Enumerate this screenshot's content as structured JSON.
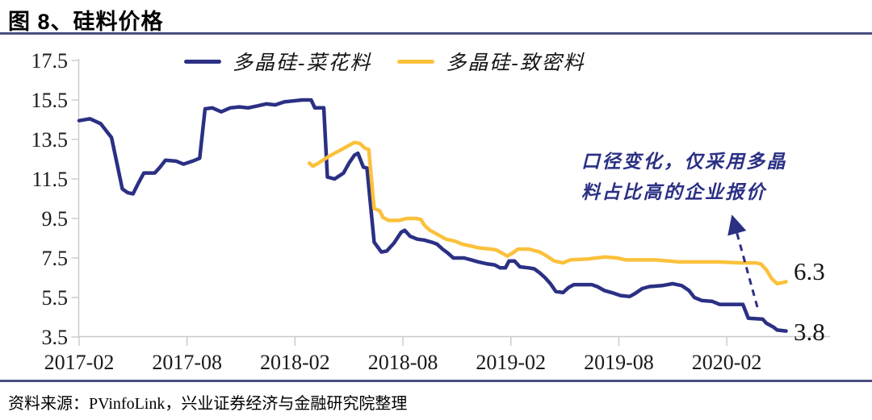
{
  "header": {
    "title": "图 8、硅料价格"
  },
  "footer": {
    "source": "资料来源：PVinfoLink，兴业证券经济与金融研究院整理"
  },
  "colors": {
    "cauliflower_line": "#2B3084",
    "dense_line": "#FBC13C",
    "rule": "#4A4F80",
    "axis": "#C9C9C9",
    "annotation_text": "#2B3084"
  },
  "chart_data": {
    "type": "line",
    "title": "硅料价格",
    "xlabel": "",
    "ylabel": "",
    "grid": false,
    "legend_position": "top",
    "y_axis": {
      "min": 3.5,
      "max": 17.5,
      "tick_step": 2,
      "tick_labels": [
        "17.5",
        "15.5",
        "13.5",
        "11.5",
        "9.5",
        "7.5",
        "5.5",
        "3.5"
      ]
    },
    "x_axis": {
      "tick_labels": [
        "2017-02",
        "2017-08",
        "2018-02",
        "2018-08",
        "2019-02",
        "2019-08",
        "2020-02"
      ],
      "months_between_ticks": 6,
      "unit_note": "x of each point = months after 2017-02"
    },
    "series": [
      {
        "name": "多晶硅-菜花料",
        "color": "#2B3084",
        "end_label": "3.8",
        "points": [
          [
            0,
            14.45
          ],
          [
            0.6,
            14.55
          ],
          [
            1.2,
            14.3
          ],
          [
            1.8,
            13.6
          ],
          [
            2.1,
            12.3
          ],
          [
            2.4,
            11.0
          ],
          [
            2.7,
            10.8
          ],
          [
            3.0,
            10.75
          ],
          [
            3.3,
            11.3
          ],
          [
            3.6,
            11.8
          ],
          [
            4.2,
            11.8
          ],
          [
            4.5,
            12.1
          ],
          [
            4.8,
            12.45
          ],
          [
            5.4,
            12.4
          ],
          [
            5.8,
            12.25
          ],
          [
            6.3,
            12.4
          ],
          [
            6.7,
            12.55
          ],
          [
            7.0,
            15.05
          ],
          [
            7.4,
            15.1
          ],
          [
            7.9,
            14.9
          ],
          [
            8.4,
            15.1
          ],
          [
            8.9,
            15.15
          ],
          [
            9.4,
            15.1
          ],
          [
            9.9,
            15.2
          ],
          [
            10.4,
            15.3
          ],
          [
            10.9,
            15.25
          ],
          [
            11.4,
            15.4
          ],
          [
            11.9,
            15.45
          ],
          [
            12.4,
            15.5
          ],
          [
            12.9,
            15.5
          ],
          [
            13.1,
            15.1
          ],
          [
            13.6,
            15.1
          ],
          [
            13.8,
            11.6
          ],
          [
            14.2,
            11.5
          ],
          [
            14.7,
            11.8
          ],
          [
            15.0,
            12.3
          ],
          [
            15.3,
            12.7
          ],
          [
            15.5,
            12.8
          ],
          [
            15.8,
            12.1
          ],
          [
            16.0,
            12.05
          ],
          [
            16.4,
            8.3
          ],
          [
            16.8,
            7.8
          ],
          [
            17.1,
            7.85
          ],
          [
            17.5,
            8.25
          ],
          [
            17.9,
            8.8
          ],
          [
            18.1,
            8.9
          ],
          [
            18.4,
            8.6
          ],
          [
            18.8,
            8.45
          ],
          [
            19.2,
            8.4
          ],
          [
            19.6,
            8.3
          ],
          [
            19.9,
            8.2
          ],
          [
            20.2,
            7.95
          ],
          [
            20.5,
            7.75
          ],
          [
            20.8,
            7.5
          ],
          [
            21.4,
            7.5
          ],
          [
            21.8,
            7.4
          ],
          [
            22.2,
            7.3
          ],
          [
            22.7,
            7.2
          ],
          [
            23.1,
            7.15
          ],
          [
            23.4,
            7.0
          ],
          [
            23.7,
            7.0
          ],
          [
            23.9,
            7.35
          ],
          [
            24.2,
            7.35
          ],
          [
            24.5,
            7.05
          ],
          [
            25.0,
            7.0
          ],
          [
            25.3,
            6.95
          ],
          [
            25.6,
            6.75
          ],
          [
            25.9,
            6.5
          ],
          [
            26.2,
            6.2
          ],
          [
            26.5,
            5.8
          ],
          [
            26.9,
            5.75
          ],
          [
            27.2,
            6.0
          ],
          [
            27.5,
            6.15
          ],
          [
            28.5,
            6.15
          ],
          [
            28.8,
            6.05
          ],
          [
            29.2,
            5.85
          ],
          [
            29.6,
            5.75
          ],
          [
            30.1,
            5.6
          ],
          [
            30.6,
            5.55
          ],
          [
            30.9,
            5.7
          ],
          [
            31.3,
            5.95
          ],
          [
            31.7,
            6.05
          ],
          [
            32.4,
            6.1
          ],
          [
            33.0,
            6.2
          ],
          [
            33.5,
            6.1
          ],
          [
            33.9,
            5.85
          ],
          [
            34.2,
            5.5
          ],
          [
            34.6,
            5.35
          ],
          [
            35.2,
            5.3
          ],
          [
            35.6,
            5.15
          ],
          [
            36.9,
            5.15
          ],
          [
            37.2,
            4.45
          ],
          [
            38.0,
            4.4
          ],
          [
            38.2,
            4.2
          ],
          [
            38.6,
            4.0
          ],
          [
            38.8,
            3.85
          ],
          [
            39.3,
            3.8
          ]
        ]
      },
      {
        "name": "多晶硅-致密料",
        "color": "#FBC13C",
        "end_label": "6.3",
        "points": [
          [
            12.8,
            12.3
          ],
          [
            13.0,
            12.15
          ],
          [
            13.3,
            12.3
          ],
          [
            13.8,
            12.6
          ],
          [
            14.2,
            12.8
          ],
          [
            14.6,
            13.0
          ],
          [
            15.0,
            13.2
          ],
          [
            15.3,
            13.35
          ],
          [
            15.6,
            13.3
          ],
          [
            15.9,
            13.05
          ],
          [
            16.1,
            13.0
          ],
          [
            16.4,
            10.0
          ],
          [
            16.7,
            9.9
          ],
          [
            16.9,
            9.55
          ],
          [
            17.2,
            9.4
          ],
          [
            17.8,
            9.4
          ],
          [
            18.2,
            9.5
          ],
          [
            18.7,
            9.5
          ],
          [
            19.0,
            9.45
          ],
          [
            19.2,
            9.15
          ],
          [
            19.5,
            8.9
          ],
          [
            20.0,
            8.65
          ],
          [
            20.4,
            8.45
          ],
          [
            20.9,
            8.35
          ],
          [
            21.3,
            8.2
          ],
          [
            21.8,
            8.1
          ],
          [
            22.3,
            8.0
          ],
          [
            22.9,
            7.95
          ],
          [
            23.2,
            7.9
          ],
          [
            23.6,
            7.7
          ],
          [
            23.8,
            7.6
          ],
          [
            24.1,
            7.75
          ],
          [
            24.4,
            7.95
          ],
          [
            25.0,
            7.95
          ],
          [
            25.6,
            7.8
          ],
          [
            26.0,
            7.6
          ],
          [
            26.4,
            7.35
          ],
          [
            26.9,
            7.25
          ],
          [
            27.3,
            7.4
          ],
          [
            28.3,
            7.45
          ],
          [
            29.2,
            7.55
          ],
          [
            29.9,
            7.5
          ],
          [
            30.4,
            7.4
          ],
          [
            32.0,
            7.4
          ],
          [
            32.8,
            7.35
          ],
          [
            33.3,
            7.3
          ],
          [
            35.5,
            7.3
          ],
          [
            36.8,
            7.25
          ],
          [
            37.6,
            7.25
          ],
          [
            37.9,
            7.2
          ],
          [
            38.2,
            6.9
          ],
          [
            38.5,
            6.45
          ],
          [
            38.8,
            6.2
          ],
          [
            39.1,
            6.25
          ],
          [
            39.3,
            6.3
          ]
        ]
      }
    ],
    "annotation": {
      "line1": "口径变化，仅采用多晶",
      "line2": "料占比高的企业报价",
      "arrow": {
        "from": [
          938,
          381
        ],
        "to": [
          908,
          272
        ],
        "style": "dashed"
      }
    }
  }
}
